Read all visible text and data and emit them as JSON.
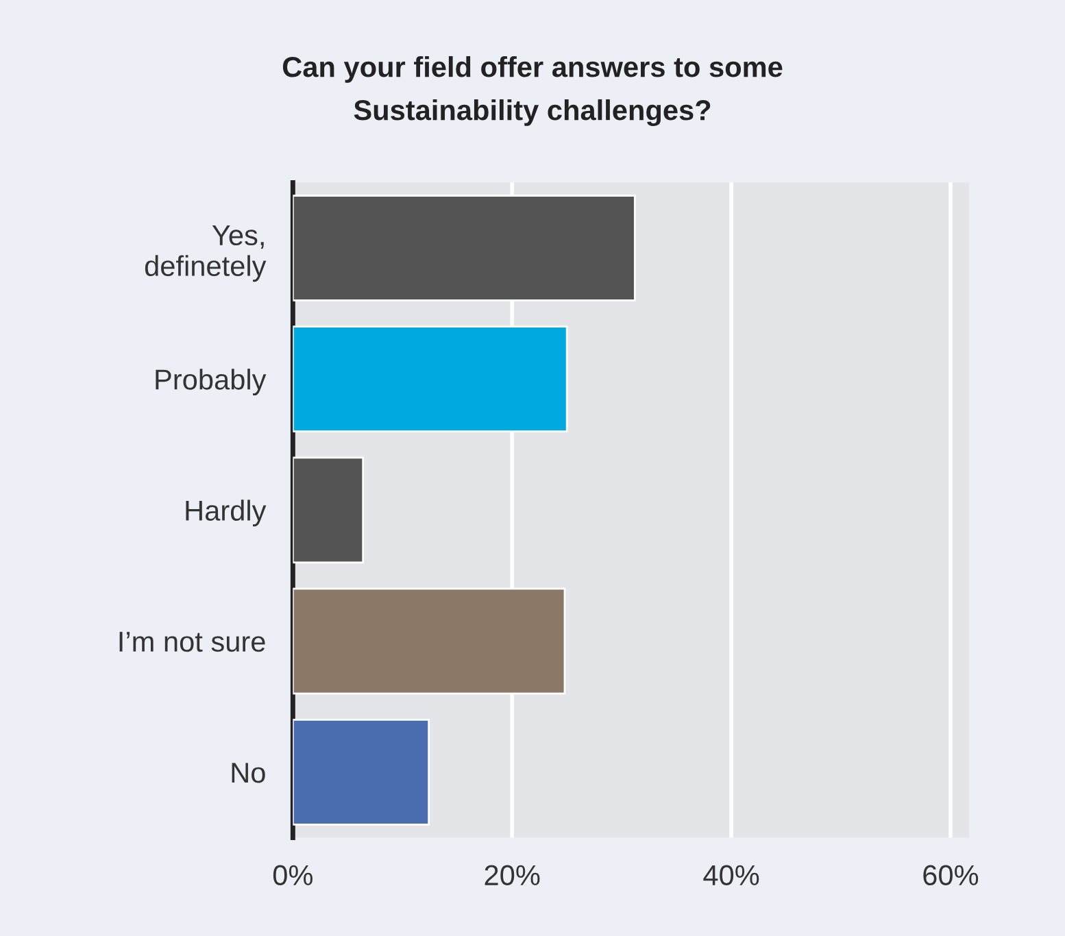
{
  "chart_data": {
    "type": "bar",
    "orientation": "horizontal",
    "title": "Can your field offer answers to some\nSustainability challenges?",
    "categories": [
      "Yes,\ndefinetely",
      "Probably",
      "Hardly",
      "I’m not sure",
      "No"
    ],
    "values": [
      31.2,
      25,
      6.4,
      24.8,
      12.4
    ],
    "colors": [
      "#545454",
      "#00a9e0",
      "#545454",
      "#8c7867",
      "#4a6db0"
    ],
    "xlim": [
      0,
      61.7
    ],
    "xticks": [
      {
        "value": 0,
        "label": "0%"
      },
      {
        "value": 20,
        "label": "20%"
      },
      {
        "value": 40,
        "label": "40%"
      },
      {
        "value": 60,
        "label": "60%"
      }
    ],
    "grid": "x",
    "legend": false
  }
}
